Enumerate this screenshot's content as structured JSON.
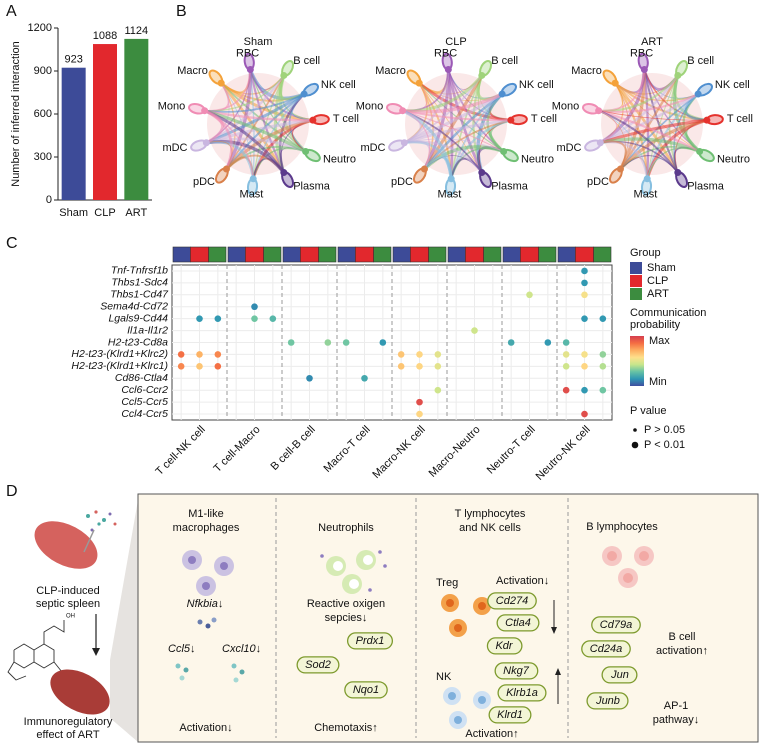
{
  "panel_labels": [
    "A",
    "B",
    "C",
    "D"
  ],
  "chart_data": [
    {
      "type": "bar",
      "ylabel": "Number of inferred interaction",
      "categories": [
        "Sham",
        "CLP",
        "ART"
      ],
      "values": [
        923,
        1088,
        1124
      ],
      "colors": [
        "#3d4b98",
        "#e2282d",
        "#3c8c3f"
      ],
      "ylim": [
        0,
        1200
      ],
      "yticks": [
        0,
        300,
        600,
        900,
        1200
      ]
    },
    {
      "type": "dot",
      "rows": [
        "Tnf-Tnfrsf1b",
        "Thbs1-Sdc4",
        "Thbs1-Cd47",
        "Sema4d-Cd72",
        "Lgals9-Cd44",
        "Il1a-Il1r2",
        "H2-t23-Cd8a",
        "H2-t23-(Klrd1+Klrc2)",
        "H2-t23-(Klrd1+Klrc1)",
        "Cd86-Ctla4",
        "Ccl6-Ccr2",
        "Ccl5-Ccr5",
        "Ccl4-Ccr5"
      ],
      "groups": [
        "T cell-NK cell",
        "T cell-Macro",
        "B cell-B cell",
        "Macro-T cell",
        "Macro-NK cell",
        "Macro-Neutro",
        "Neutro-T cell",
        "Neutro-NK cell"
      ],
      "legend_title": "Group",
      "conditions": [
        {
          "name": "Sham",
          "color": "#3d4b98"
        },
        {
          "name": "CLP",
          "color": "#e2282d"
        },
        {
          "name": "ART",
          "color": "#3c8c3f"
        }
      ],
      "color_title": [
        "Communication",
        "probability"
      ],
      "color_max_label": "Max",
      "color_min_label": "Min",
      "probability_range": [
        0,
        1
      ],
      "colorscale": [
        "#3f4ea0",
        "#2f97b3",
        "#66c2a5",
        "#c7e68c",
        "#fee08b",
        "#fdae61",
        "#f46d43",
        "#d53e4f"
      ],
      "size_title": "P value",
      "size_legend": [
        {
          "label": "P > 0.05",
          "significant": false
        },
        {
          "label": "P < 0.01",
          "significant": true
        }
      ],
      "points": [
        {
          "row": "Tnf-Tnfrsf1b",
          "group": "Neutro-NK cell",
          "condition": "CLP",
          "probability": 0.15,
          "significant": true
        },
        {
          "row": "Thbs1-Sdc4",
          "group": "Neutro-NK cell",
          "condition": "CLP",
          "probability": 0.15,
          "significant": true
        },
        {
          "row": "Thbs1-Cd47",
          "group": "Neutro-T cell",
          "condition": "CLP",
          "probability": 0.45,
          "significant": true
        },
        {
          "row": "Thbs1-Cd47",
          "group": "Neutro-NK cell",
          "condition": "CLP",
          "probability": 0.55,
          "significant": true
        },
        {
          "row": "Sema4d-Cd72",
          "group": "T cell-Macro",
          "condition": "CLP",
          "probability": 0.12,
          "significant": true
        },
        {
          "row": "Lgals9-Cd44",
          "group": "T cell-NK cell",
          "condition": "CLP",
          "probability": 0.15,
          "significant": true
        },
        {
          "row": "Lgals9-Cd44",
          "group": "T cell-NK cell",
          "condition": "ART",
          "probability": 0.15,
          "significant": true
        },
        {
          "row": "Lgals9-Cd44",
          "group": "T cell-Macro",
          "condition": "CLP",
          "probability": 0.3,
          "significant": true
        },
        {
          "row": "Lgals9-Cd44",
          "group": "T cell-Macro",
          "condition": "ART",
          "probability": 0.25,
          "significant": true
        },
        {
          "row": "Lgals9-Cd44",
          "group": "Neutro-NK cell",
          "condition": "CLP",
          "probability": 0.15,
          "significant": true
        },
        {
          "row": "Lgals9-Cd44",
          "group": "Neutro-NK cell",
          "condition": "ART",
          "probability": 0.15,
          "significant": true
        },
        {
          "row": "Il1a-Il1r2",
          "group": "Macro-Neutro",
          "condition": "CLP",
          "probability": 0.45,
          "significant": true
        },
        {
          "row": "H2-t23-Cd8a",
          "group": "B cell-B cell",
          "condition": "Sham",
          "probability": 0.3,
          "significant": true
        },
        {
          "row": "H2-t23-Cd8a",
          "group": "B cell-B cell",
          "condition": "ART",
          "probability": 0.35,
          "significant": true
        },
        {
          "row": "H2-t23-Cd8a",
          "group": "Macro-T cell",
          "condition": "Sham",
          "probability": 0.3,
          "significant": true
        },
        {
          "row": "H2-t23-Cd8a",
          "group": "Macro-T cell",
          "condition": "ART",
          "probability": 0.15,
          "significant": true
        },
        {
          "row": "H2-t23-Cd8a",
          "group": "Neutro-T cell",
          "condition": "Sham",
          "probability": 0.2,
          "significant": true
        },
        {
          "row": "H2-t23-Cd8a",
          "group": "Neutro-T cell",
          "condition": "ART",
          "probability": 0.15,
          "significant": true
        },
        {
          "row": "H2-t23-Cd8a",
          "group": "Neutro-NK cell",
          "condition": "Sham",
          "probability": 0.25,
          "significant": true
        },
        {
          "row": "H2-t23-(Klrd1+Klrc2)",
          "group": "T cell-NK cell",
          "condition": "Sham",
          "probability": 0.85,
          "significant": true
        },
        {
          "row": "H2-t23-(Klrd1+Klrc2)",
          "group": "T cell-NK cell",
          "condition": "CLP",
          "probability": 0.7,
          "significant": true
        },
        {
          "row": "H2-t23-(Klrd1+Klrc2)",
          "group": "T cell-NK cell",
          "condition": "ART",
          "probability": 0.8,
          "significant": true
        },
        {
          "row": "H2-t23-(Klrd1+Klrc2)",
          "group": "Macro-NK cell",
          "condition": "Sham",
          "probability": 0.65,
          "significant": true
        },
        {
          "row": "H2-t23-(Klrd1+Klrc2)",
          "group": "Macro-NK cell",
          "condition": "CLP",
          "probability": 0.6,
          "significant": true
        },
        {
          "row": "H2-t23-(Klrd1+Klrc2)",
          "group": "Macro-NK cell",
          "condition": "ART",
          "probability": 0.5,
          "significant": true
        },
        {
          "row": "H2-t23-(Klrd1+Klrc2)",
          "group": "Neutro-NK cell",
          "condition": "Sham",
          "probability": 0.5,
          "significant": true
        },
        {
          "row": "H2-t23-(Klrd1+Klrc2)",
          "group": "Neutro-NK cell",
          "condition": "CLP",
          "probability": 0.55,
          "significant": true
        },
        {
          "row": "H2-t23-(Klrd1+Klrc2)",
          "group": "Neutro-NK cell",
          "condition": "ART",
          "probability": 0.35,
          "significant": true
        },
        {
          "row": "H2-t23-(Klrd1+Klrc1)",
          "group": "T cell-NK cell",
          "condition": "Sham",
          "probability": 0.8,
          "significant": true
        },
        {
          "row": "H2-t23-(Klrd1+Klrc1)",
          "group": "T cell-NK cell",
          "condition": "CLP",
          "probability": 0.65,
          "significant": true
        },
        {
          "row": "H2-t23-(Klrd1+Klrc1)",
          "group": "T cell-NK cell",
          "condition": "ART",
          "probability": 0.85,
          "significant": true
        },
        {
          "row": "H2-t23-(Klrd1+Klrc1)",
          "group": "Macro-NK cell",
          "condition": "Sham",
          "probability": 0.65,
          "significant": true
        },
        {
          "row": "H2-t23-(Klrd1+Klrc1)",
          "group": "Macro-NK cell",
          "condition": "CLP",
          "probability": 0.6,
          "significant": true
        },
        {
          "row": "H2-t23-(Klrd1+Klrc1)",
          "group": "Macro-NK cell",
          "condition": "ART",
          "probability": 0.5,
          "significant": true
        },
        {
          "row": "H2-t23-(Klrd1+Klrc1)",
          "group": "Neutro-NK cell",
          "condition": "Sham",
          "probability": 0.45,
          "significant": true
        },
        {
          "row": "H2-t23-(Klrd1+Klrc1)",
          "group": "Neutro-NK cell",
          "condition": "CLP",
          "probability": 0.6,
          "significant": true
        },
        {
          "row": "H2-t23-(Klrd1+Klrc1)",
          "group": "Neutro-NK cell",
          "condition": "ART",
          "probability": 0.4,
          "significant": true
        },
        {
          "row": "Cd86-Ctla4",
          "group": "B cell-B cell",
          "condition": "CLP",
          "probability": 0.12,
          "significant": true
        },
        {
          "row": "Cd86-Ctla4",
          "group": "Macro-T cell",
          "condition": "CLP",
          "probability": 0.2,
          "significant": true
        },
        {
          "row": "Ccl6-Ccr2",
          "group": "Macro-NK cell",
          "condition": "ART",
          "probability": 0.45,
          "significant": true
        },
        {
          "row": "Ccl6-Ccr2",
          "group": "Neutro-NK cell",
          "condition": "Sham",
          "probability": 0.95,
          "significant": true
        },
        {
          "row": "Ccl6-Ccr2",
          "group": "Neutro-NK cell",
          "condition": "CLP",
          "probability": 0.15,
          "significant": true
        },
        {
          "row": "Ccl6-Ccr2",
          "group": "Neutro-NK cell",
          "condition": "ART",
          "probability": 0.3,
          "significant": true
        },
        {
          "row": "Ccl5-Ccr5",
          "group": "Macro-NK cell",
          "condition": "CLP",
          "probability": 0.95,
          "significant": true
        },
        {
          "row": "Ccl4-Ccr5",
          "group": "Macro-NK cell",
          "condition": "CLP",
          "probability": 0.6,
          "significant": true
        },
        {
          "row": "Ccl4-Ccr5",
          "group": "Neutro-NK cell",
          "condition": "CLP",
          "probability": 0.95,
          "significant": true
        }
      ]
    }
  ],
  "networks": {
    "titles": [
      "Sham",
      "CLP",
      "ART"
    ],
    "nodes": [
      {
        "name": "Macro",
        "color": "#f4a23a"
      },
      {
        "name": "RBC",
        "color": "#9b59b6"
      },
      {
        "name": "B cell",
        "color": "#9fd37a"
      },
      {
        "name": "NK cell",
        "color": "#4f8fd0"
      },
      {
        "name": "T cell",
        "color": "#e5322d"
      },
      {
        "name": "Neutro",
        "color": "#6fbf73"
      },
      {
        "name": "Plasma",
        "color": "#5b3a8c"
      },
      {
        "name": "Mast",
        "color": "#86bfe0"
      },
      {
        "name": "pDC",
        "color": "#d9804a"
      },
      {
        "name": "mDC",
        "color": "#c9b6e0"
      },
      {
        "name": "Mono",
        "color": "#f08cb4"
      }
    ]
  },
  "panel_d": {
    "left": {
      "top_caption": [
        "CLP-induced",
        "septic spleen"
      ],
      "bottom_caption": [
        "Immunoregulatory",
        "effect of ART"
      ]
    },
    "sections": [
      {
        "title": [
          "M1-like",
          "macrophages"
        ],
        "items": [
          "Nfkbia↓",
          "Ccl5↓",
          "Cxcl10↓"
        ],
        "footer": "Activation↓"
      },
      {
        "title": [
          "Neutrophils"
        ],
        "text": [
          "Reactive oxigen",
          "sepcies↓"
        ],
        "genes": [
          "Prdx1",
          "Sod2",
          "Nqo1"
        ],
        "footer": "Chemotaxis↑"
      },
      {
        "title": [
          "T lymphocytes",
          "and NK cells"
        ],
        "treg": "Treg",
        "treg_effect": "Activation↓",
        "treg_genes": [
          "Cd274",
          "Ctla4",
          "Kdr"
        ],
        "nk": "NK",
        "nk_genes": [
          "Nkg7",
          "Klrb1a",
          "Klrd1"
        ],
        "footer": "Activation↑"
      },
      {
        "title": [
          "B lymphocytes"
        ],
        "genes": [
          "Cd79a",
          "Cd24a",
          "Jun",
          "Junb"
        ],
        "effect1": [
          "B cell",
          "activation↑"
        ],
        "effect2": [
          "AP-1",
          "pathway↓"
        ]
      }
    ]
  }
}
